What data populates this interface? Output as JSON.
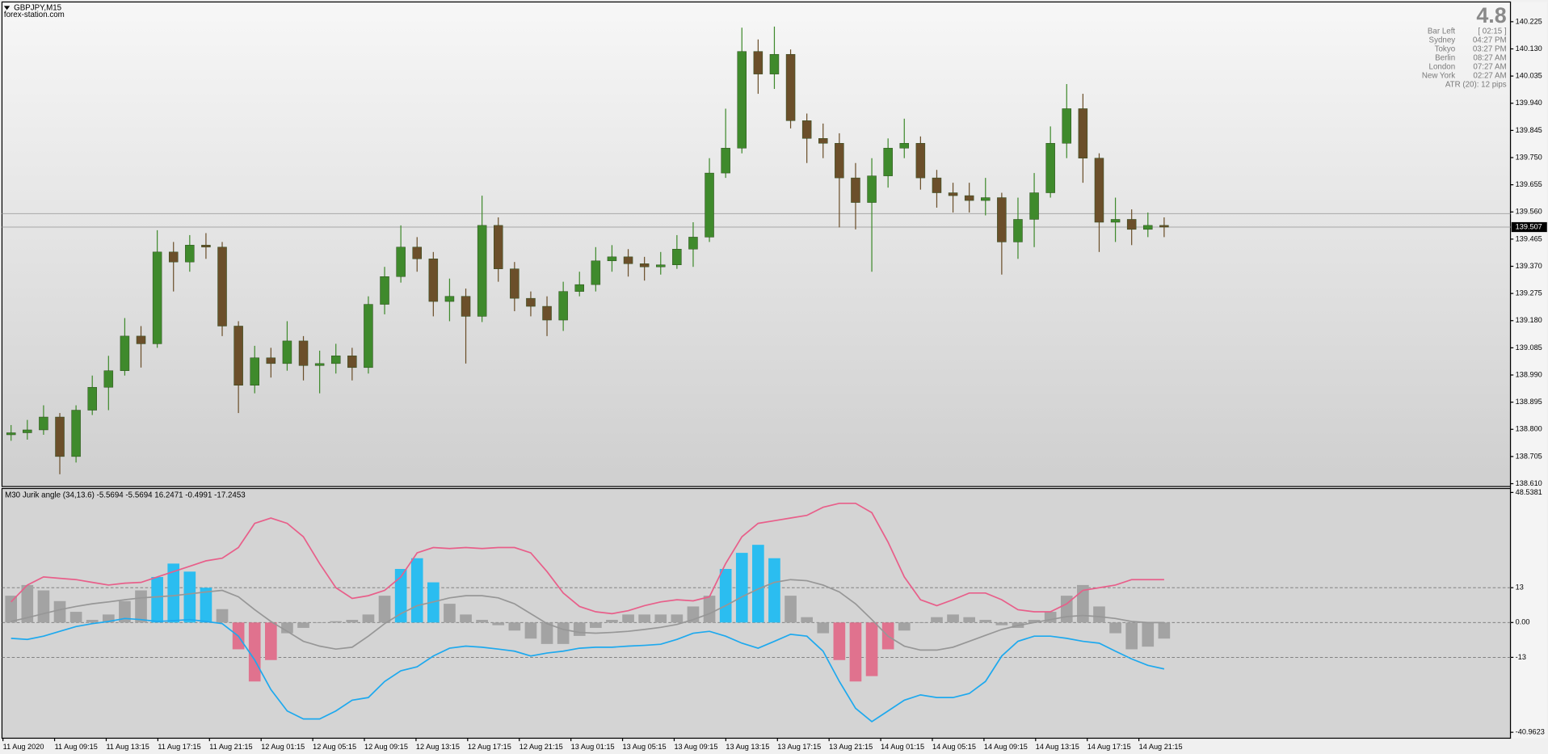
{
  "chart_data": [
    {
      "type": "candlestick",
      "title": "GBPJPY,M15",
      "subtitle": "forex-station.com",
      "up_color": "#3f8a2c",
      "down_color": "#6b4f2a",
      "open": [
        138.781,
        138.788,
        138.798,
        138.843,
        138.705,
        138.867,
        138.947,
        139.005,
        139.126,
        139.099,
        139.42,
        139.385,
        139.444,
        139.437,
        139.161,
        138.954,
        139.05,
        139.03,
        139.109,
        139.023,
        139.03,
        139.057,
        139.016,
        139.237,
        139.334,
        139.437,
        139.396,
        139.247,
        139.265,
        139.195,
        139.513,
        139.361,
        139.258,
        139.23,
        139.182,
        139.282,
        139.306,
        139.389,
        139.403,
        139.379,
        139.368,
        139.375,
        139.43,
        139.472,
        139.696,
        139.783,
        140.121,
        140.042,
        140.111,
        139.879,
        139.817,
        139.8,
        139.679,
        139.593,
        139.686,
        139.783,
        139.8,
        139.679,
        139.627,
        139.617,
        139.6,
        139.61,
        139.455,
        139.534,
        139.627,
        139.8,
        139.921,
        139.748,
        139.524,
        139.534,
        139.499,
        139.513
      ],
      "high": [
        138.815,
        138.833,
        138.884,
        138.857,
        138.884,
        138.988,
        139.057,
        139.189,
        139.161,
        139.496,
        139.455,
        139.479,
        139.486,
        139.455,
        139.178,
        139.092,
        139.085,
        139.178,
        139.126,
        139.075,
        139.099,
        139.085,
        139.265,
        139.368,
        139.513,
        139.472,
        139.42,
        139.327,
        139.292,
        139.617,
        139.541,
        139.385,
        139.282,
        139.265,
        139.316,
        139.351,
        139.437,
        139.444,
        139.43,
        139.403,
        139.42,
        139.479,
        139.524,
        139.748,
        139.921,
        140.204,
        140.163,
        140.208,
        140.128,
        139.904,
        139.869,
        139.835,
        139.731,
        139.748,
        139.817,
        139.886,
        139.824,
        139.707,
        139.662,
        139.662,
        139.679,
        139.627,
        139.61,
        139.696,
        139.859,
        140.007,
        139.973,
        139.765,
        139.61,
        139.569,
        139.558,
        139.541
      ],
      "low": [
        138.76,
        138.764,
        138.781,
        138.643,
        138.684,
        138.85,
        138.867,
        138.988,
        139.016,
        139.085,
        139.282,
        139.351,
        139.396,
        139.126,
        138.857,
        138.926,
        138.981,
        139.005,
        138.971,
        138.926,
        138.995,
        138.971,
        138.995,
        139.202,
        139.313,
        139.351,
        139.195,
        139.178,
        139.03,
        139.175,
        139.316,
        139.213,
        139.195,
        139.126,
        139.144,
        139.265,
        139.282,
        139.351,
        139.334,
        139.32,
        139.341,
        139.361,
        139.368,
        139.455,
        139.679,
        139.765,
        139.973,
        139.99,
        139.852,
        139.731,
        139.748,
        139.506,
        139.499,
        139.351,
        139.645,
        139.748,
        139.638,
        139.575,
        139.558,
        139.558,
        139.548,
        139.341,
        139.396,
        139.437,
        139.61,
        139.748,
        139.662,
        139.42,
        139.455,
        139.444,
        139.472,
        139.472
      ],
      "close": [
        138.788,
        138.798,
        138.843,
        138.705,
        138.867,
        138.947,
        139.005,
        139.126,
        139.099,
        139.42,
        139.385,
        139.444,
        139.437,
        139.161,
        138.954,
        139.05,
        139.03,
        139.109,
        139.023,
        139.03,
        139.057,
        139.016,
        139.237,
        139.334,
        139.437,
        139.396,
        139.247,
        139.265,
        139.195,
        139.513,
        139.361,
        139.258,
        139.23,
        139.182,
        139.282,
        139.306,
        139.389,
        139.403,
        139.379,
        139.368,
        139.375,
        139.43,
        139.472,
        139.696,
        139.783,
        140.121,
        140.042,
        140.111,
        139.879,
        139.817,
        139.8,
        139.679,
        139.593,
        139.686,
        139.783,
        139.8,
        139.679,
        139.627,
        139.617,
        139.6,
        139.61,
        139.455,
        139.534,
        139.627,
        139.8,
        139.921,
        139.748,
        139.524,
        139.534,
        139.499,
        139.513,
        139.507
      ],
      "ylim": [
        138.6,
        140.294
      ],
      "yticks": [
        140.225,
        {
          "value": 140.13,
          "label": "140.130"
        },
        140.035,
        {
          "value": 139.94,
          "label": "139.940"
        },
        139.845,
        {
          "value": 139.75,
          "label": "139.750"
        },
        139.655,
        {
          "value": 139.56,
          "label": "139.560"
        },
        139.465,
        {
          "value": 139.37,
          "label": "139.370"
        },
        139.275,
        {
          "value": 139.18,
          "label": "139.180"
        },
        139.085,
        {
          "value": 138.99,
          "label": "138.990"
        },
        138.895,
        {
          "value": 138.8,
          "label": "138.800"
        },
        138.705,
        {
          "value": 138.61,
          "label": "138.610"
        }
      ],
      "last_price": {
        "value": 139.507,
        "label": "139.507"
      },
      "ask_line": 139.554,
      "info": {
        "headline": "4.8",
        "rows": [
          {
            "label": "Bar Left",
            "value": "[ 02:15 ]"
          },
          {
            "label": "Sydney",
            "value": "04:27 PM"
          },
          {
            "label": "Tokyo",
            "value": "03:27 PM"
          },
          {
            "label": "Berlin",
            "value": "08:27 AM"
          },
          {
            "label": "London",
            "value": "07:27 AM"
          },
          {
            "label": "New York",
            "value": "02:27 AM"
          }
        ],
        "atr": "ATR (20): 12 pips"
      }
    },
    {
      "type": "bar",
      "title": "M30 Jurik angle (34,13.6) -5.5694 -5.5694 16.2471 -0.4991 -17.2453",
      "ylim": [
        -40.9623,
        48.5381
      ],
      "yticks": [
        48.5381,
        13,
        {
          "value": 0,
          "label": "0.00"
        },
        -13,
        -40.9623
      ],
      "levels": [
        13,
        0,
        -13
      ],
      "series": [
        {
          "type": "bar",
          "color": "#a3a3a3",
          "values": [
            10,
            14,
            12,
            8,
            4,
            1,
            3,
            8,
            12,
            null,
            null,
            null,
            null,
            5,
            null,
            null,
            null,
            -4,
            -2,
            0,
            0.5,
            1,
            3,
            10,
            null,
            null,
            null,
            7,
            3,
            1,
            -1,
            -3,
            -6,
            -8,
            -8,
            -5,
            -2,
            1,
            3,
            3,
            3,
            3,
            6,
            10,
            null,
            null,
            null,
            null,
            10,
            2,
            -4,
            null,
            null,
            null,
            null,
            -3,
            0,
            2,
            3,
            2,
            1,
            -1,
            -2,
            1,
            4,
            10,
            14,
            6,
            -4,
            -10,
            -9,
            -6
          ]
        },
        {
          "type": "bar",
          "color": "#2bbdf0",
          "values": [
            null,
            null,
            null,
            null,
            null,
            null,
            null,
            null,
            null,
            17,
            22,
            19,
            13,
            null,
            null,
            null,
            null,
            null,
            null,
            null,
            null,
            null,
            null,
            null,
            20,
            24,
            15,
            null,
            null,
            null,
            null,
            null,
            null,
            null,
            null,
            null,
            null,
            null,
            null,
            null,
            null,
            null,
            null,
            null,
            20,
            26,
            29,
            24,
            null,
            null,
            null,
            null,
            null,
            null,
            null,
            null,
            null,
            null,
            null,
            null,
            null,
            null,
            null,
            null,
            null,
            null,
            null,
            null,
            null,
            null,
            null,
            null
          ]
        },
        {
          "type": "bar",
          "color": "#e0728e",
          "values": [
            null,
            null,
            null,
            null,
            null,
            null,
            null,
            null,
            null,
            null,
            null,
            null,
            null,
            null,
            -10,
            -22,
            -14,
            null,
            null,
            null,
            null,
            null,
            null,
            null,
            null,
            null,
            null,
            null,
            null,
            null,
            null,
            null,
            null,
            null,
            null,
            null,
            null,
            null,
            null,
            null,
            null,
            null,
            null,
            null,
            null,
            null,
            null,
            null,
            null,
            null,
            null,
            -14,
            -22,
            -20,
            -10,
            null,
            null,
            null,
            null,
            null,
            null,
            null,
            null,
            null,
            null,
            null,
            null,
            null,
            null,
            null,
            null,
            null
          ]
        },
        {
          "type": "line",
          "color": "#e85f8a",
          "values": [
            7.7,
            14,
            17,
            16.5,
            16,
            15,
            14,
            14.7,
            15,
            17,
            19,
            21,
            23,
            24,
            28,
            37,
            39,
            37,
            32,
            22,
            13,
            9,
            10,
            12,
            17,
            26,
            28,
            27.6,
            28,
            27.6,
            28,
            28,
            26,
            19,
            11,
            6,
            4,
            3.3,
            4.4,
            6.3,
            7.7,
            8.5,
            8.1,
            9.6,
            22,
            32,
            37,
            38,
            39,
            40,
            43,
            44.5,
            44.5,
            41,
            30,
            17,
            8.5,
            6.3,
            8.5,
            11,
            11,
            8.5,
            4.8,
            4,
            4,
            7,
            12,
            13,
            14,
            16,
            16,
            16
          ]
        },
        {
          "type": "line",
          "color": "#979797",
          "values": [
            0.4,
            1.8,
            3.3,
            4.8,
            6,
            7,
            7.7,
            8.5,
            9.2,
            9.6,
            10,
            10.7,
            11.4,
            12,
            9.6,
            4.8,
            0.4,
            -3.3,
            -7,
            -8.8,
            -9.9,
            -9.2,
            -5.1,
            -0.4,
            3.3,
            6.3,
            7.7,
            9.2,
            10,
            10,
            9.2,
            7,
            3.3,
            -0.4,
            -2.6,
            -3.7,
            -4,
            -3.7,
            -3.3,
            -2.6,
            -1.8,
            -0.7,
            1.1,
            3.3,
            6.3,
            9.6,
            12.5,
            15,
            16,
            15.6,
            14,
            11.4,
            7,
            1.1,
            -5.1,
            -8.8,
            -10.3,
            -10.3,
            -9.2,
            -7,
            -4.8,
            -2.6,
            -1.1,
            0,
            1.1,
            2.2,
            2.6,
            2.2,
            1.5,
            0.4,
            0,
            0
          ]
        },
        {
          "type": "line",
          "color": "#1ea9ee",
          "values": [
            -5.9,
            -6.3,
            -5.1,
            -3.3,
            -1.5,
            -0.4,
            0.4,
            1.5,
            1.1,
            0.4,
            0.7,
            1.1,
            0.4,
            -0.4,
            -5.1,
            -14,
            -25,
            -33,
            -36,
            -36,
            -33,
            -29,
            -28,
            -22,
            -18,
            -16.5,
            -12.5,
            -9.6,
            -8.8,
            -9.2,
            -9.9,
            -10.7,
            -12.5,
            -11.4,
            -10.7,
            -9.6,
            -9.2,
            -9.2,
            -8.8,
            -8.5,
            -8.1,
            -6.3,
            -4,
            -3.3,
            -5.1,
            -7.7,
            -9.6,
            -7,
            -4.4,
            -5.1,
            -10.7,
            -22,
            -32,
            -37,
            -33,
            -29,
            -27,
            -28,
            -28,
            -26.5,
            -22,
            -12.5,
            -7,
            -5.1,
            -5.1,
            -5.9,
            -7,
            -7.7,
            -10.7,
            -13.6,
            -16,
            -17.3
          ]
        }
      ],
      "x_labels": [
        "11 Aug 2020",
        "11 Aug 09:15",
        "11 Aug 13:15",
        "11 Aug 17:15",
        "11 Aug 21:15",
        "12 Aug 01:15",
        "12 Aug 05:15",
        "12 Aug 09:15",
        "12 Aug 13:15",
        "12 Aug 17:15",
        "12 Aug 21:15",
        "13 Aug 01:15",
        "13 Aug 05:15",
        "13 Aug 09:15",
        "13 Aug 13:15",
        "13 Aug 17:15",
        "13 Aug 21:15",
        "14 Aug 01:15",
        "14 Aug 05:15",
        "14 Aug 09:15",
        "14 Aug 13:15",
        "14 Aug 17:15",
        "14 Aug 21:15"
      ]
    }
  ]
}
